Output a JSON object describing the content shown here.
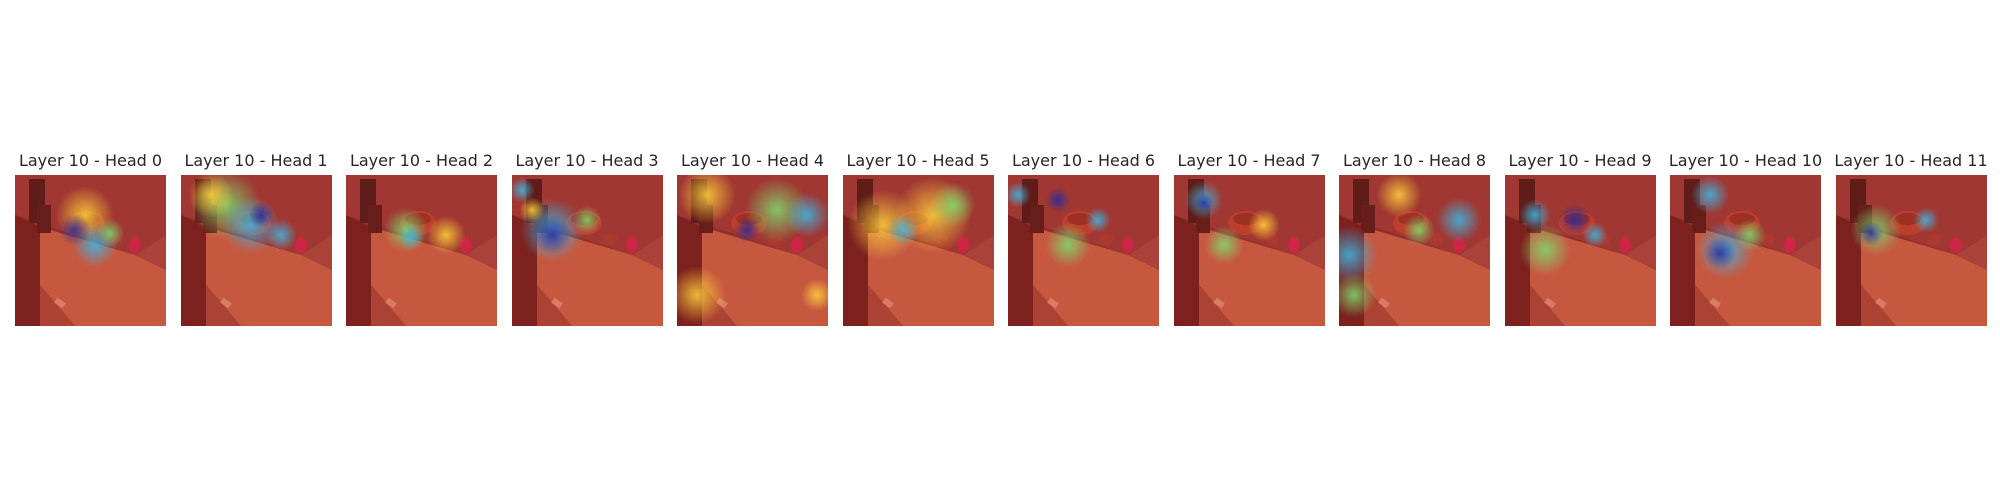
{
  "figure": {
    "panels": [
      {
        "title": "Layer 10 - Head 0"
      },
      {
        "title": "Layer 10 - Head 1"
      },
      {
        "title": "Layer 10 - Head 2"
      },
      {
        "title": "Layer 10 - Head 3"
      },
      {
        "title": "Layer 10 - Head 4"
      },
      {
        "title": "Layer 10 - Head 5"
      },
      {
        "title": "Layer 10 - Head 6"
      },
      {
        "title": "Layer 10 - Head 7"
      },
      {
        "title": "Layer 10 - Head 8"
      },
      {
        "title": "Layer 10 - Head 9"
      },
      {
        "title": "Layer 10 - Head 10"
      },
      {
        "title": "Layer 10 - Head 11"
      }
    ]
  },
  "colors": {
    "background": "#ffffff",
    "title_text": "#262626",
    "overlay_base": "#c8322a",
    "hot": "#ffd23c",
    "warm": "#7fdc6e",
    "cool": "#3bb8e6",
    "peak": "#2a2a9e"
  }
}
